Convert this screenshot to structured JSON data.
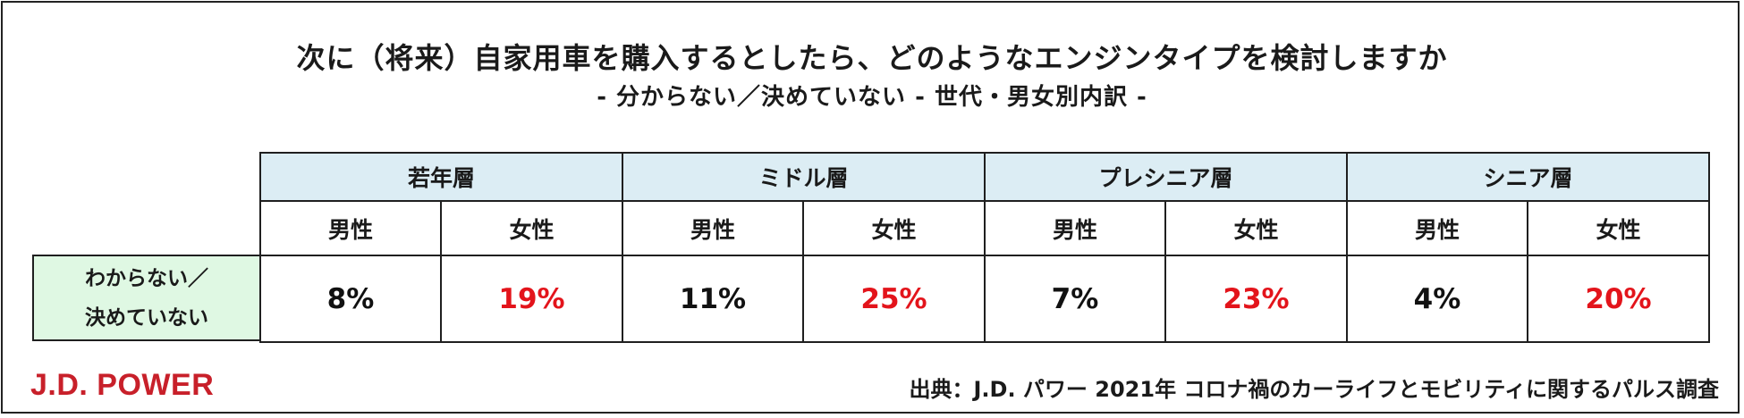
{
  "title": "次に（将来）自家用車を購入するとしたら、どのようなエンジンタイプを検討しますか",
  "subtitle": "- 分からない／決めていない - 世代・男女別内訳 -",
  "row_label": {
    "line1": "わからない／",
    "line2": "決めていない"
  },
  "groups": [
    "若年層",
    "ミドル層",
    "プレシニア層",
    "シニア層"
  ],
  "genders": [
    "男性",
    "女性"
  ],
  "colors": {
    "male": "#111111",
    "female": "#e3141b",
    "group_header_bg": "#dcedf4",
    "row_label_bg": "#dff8e3",
    "logo": "#c8202a"
  },
  "chart_data": {
    "type": "table",
    "title": "次に（将来）自家用車を購入するとしたら、どのようなエンジンタイプを検討しますか",
    "subtitle": "- 分からない／決めていない - 世代・男女別内訳 -",
    "row": "わからない／決めていない",
    "columns": [
      "若年層 男性",
      "若年層 女性",
      "ミドル層 男性",
      "ミドル層 女性",
      "プレシニア層 男性",
      "プレシニア層 女性",
      "シニア層 男性",
      "シニア層 女性"
    ],
    "values": [
      8,
      19,
      11,
      25,
      7,
      23,
      4,
      20
    ],
    "unit": "%",
    "labels": [
      "8%",
      "19%",
      "11%",
      "25%",
      "7%",
      "23%",
      "4%",
      "20%"
    ]
  },
  "logo": "J.D. POWER",
  "source": "出典：J.D. パワー 2021年 コロナ禍のカーライフとモビリティに関するパルス調査"
}
